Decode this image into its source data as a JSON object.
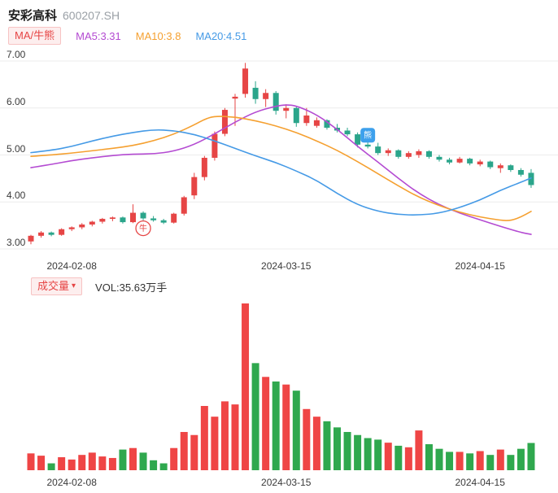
{
  "header": {
    "title": "安彩高科",
    "code": "600207.SH",
    "ma_badge": "MA/牛熊",
    "legend": [
      {
        "name": "MA5",
        "label": "MA5:3.31",
        "color": "#b44bd2"
      },
      {
        "name": "MA10",
        "label": "MA10:3.8",
        "color": "#f5a030"
      },
      {
        "name": "MA20",
        "label": "MA20:4.51",
        "color": "#459ae6"
      }
    ]
  },
  "volume_header": {
    "selector_label": "成交量",
    "caret": "▾",
    "value_label": "VOL:35.63万手",
    "latest_volume": 35.63,
    "volume_unit": "万手"
  },
  "colors": {
    "accent": "#e64545",
    "accent_bg": "#fdeeee",
    "up": "#e64545",
    "down": "#2ba58b",
    "vol_up": "#ef4545",
    "vol_down": "#2fa84e",
    "grid": "#ececec"
  },
  "chart_data": {
    "type": "candlestick+volume",
    "title": "安彩高科 600207.SH",
    "ylim": [
      3,
      7
    ],
    "y_axis_labels": [
      "7.00",
      "6.00",
      "5.00",
      "4.00",
      "3.00"
    ],
    "x_axis_labels": [
      {
        "text": "2024-02-08",
        "idx": 4
      },
      {
        "text": "2024-03-15",
        "idx": 25
      },
      {
        "text": "2024-04-15",
        "idx": 44
      }
    ],
    "candles_ohlcv": [
      [
        3.16,
        3.3,
        3.1,
        3.28,
        22
      ],
      [
        3.28,
        3.38,
        3.24,
        3.35,
        19
      ],
      [
        3.35,
        3.37,
        3.27,
        3.3,
        9
      ],
      [
        3.3,
        3.44,
        3.28,
        3.42,
        17
      ],
      [
        3.42,
        3.48,
        3.38,
        3.46,
        14
      ],
      [
        3.46,
        3.55,
        3.42,
        3.52,
        20
      ],
      [
        3.52,
        3.6,
        3.48,
        3.58,
        23
      ],
      [
        3.58,
        3.66,
        3.54,
        3.64,
        18
      ],
      [
        3.64,
        3.69,
        3.59,
        3.67,
        16
      ],
      [
        3.67,
        3.69,
        3.54,
        3.57,
        27
      ],
      [
        3.57,
        3.95,
        3.55,
        3.77,
        29
      ],
      [
        3.77,
        3.8,
        3.61,
        3.65,
        23
      ],
      [
        3.65,
        3.7,
        3.58,
        3.61,
        13
      ],
      [
        3.61,
        3.64,
        3.53,
        3.56,
        9
      ],
      [
        3.56,
        3.77,
        3.54,
        3.75,
        29
      ],
      [
        3.75,
        4.13,
        3.71,
        4.1,
        50
      ],
      [
        4.14,
        4.62,
        4.06,
        4.53,
        46
      ],
      [
        4.53,
        4.98,
        4.46,
        4.94,
        84
      ],
      [
        4.94,
        5.5,
        4.88,
        5.45,
        70
      ],
      [
        5.45,
        6.0,
        5.4,
        5.96,
        90
      ],
      [
        6.2,
        6.3,
        5.62,
        6.24,
        86
      ],
      [
        6.3,
        6.96,
        6.22,
        6.84,
        218
      ],
      [
        6.43,
        6.57,
        6.09,
        6.19,
        140
      ],
      [
        6.19,
        6.4,
        6.02,
        6.32,
        122
      ],
      [
        6.32,
        6.36,
        5.86,
        5.94,
        116
      ],
      [
        5.94,
        6.08,
        5.78,
        6.0,
        112
      ],
      [
        6.0,
        6.04,
        5.6,
        5.68,
        104
      ],
      [
        5.68,
        6.0,
        5.62,
        5.84,
        80
      ],
      [
        5.62,
        5.8,
        5.58,
        5.74,
        70
      ],
      [
        5.74,
        5.76,
        5.54,
        5.58,
        64
      ],
      [
        5.58,
        5.66,
        5.48,
        5.52,
        56
      ],
      [
        5.52,
        5.58,
        5.4,
        5.44,
        50
      ],
      [
        5.44,
        5.48,
        5.16,
        5.22,
        46
      ],
      [
        5.22,
        5.34,
        5.14,
        5.18,
        42
      ],
      [
        5.18,
        5.26,
        5.0,
        5.04,
        40
      ],
      [
        5.04,
        5.14,
        4.98,
        5.1,
        36
      ],
      [
        5.1,
        5.12,
        4.92,
        4.96,
        32
      ],
      [
        4.96,
        5.08,
        4.92,
        5.04,
        30
      ],
      [
        5.0,
        5.12,
        4.94,
        5.08,
        52
      ],
      [
        5.08,
        5.1,
        4.92,
        4.96,
        34
      ],
      [
        4.96,
        5.0,
        4.86,
        4.9,
        28
      ],
      [
        4.9,
        4.94,
        4.8,
        4.84,
        24
      ],
      [
        4.84,
        4.96,
        4.82,
        4.92,
        24
      ],
      [
        4.92,
        4.94,
        4.78,
        4.82,
        22
      ],
      [
        4.8,
        4.9,
        4.76,
        4.86,
        25
      ],
      [
        4.86,
        4.88,
        4.7,
        4.74,
        20
      ],
      [
        4.72,
        4.82,
        4.62,
        4.78,
        27
      ],
      [
        4.78,
        4.8,
        4.64,
        4.68,
        20
      ],
      [
        4.68,
        4.72,
        4.54,
        4.58,
        28
      ],
      [
        4.62,
        4.7,
        4.3,
        4.36,
        35.63
      ]
    ],
    "ma_lines": [
      {
        "name": "MA5",
        "color": "#b44bd2",
        "points": [
          [
            0,
            4.73
          ],
          [
            2,
            4.8
          ],
          [
            4,
            4.88
          ],
          [
            6,
            4.94
          ],
          [
            8,
            4.99
          ],
          [
            10,
            5.02
          ],
          [
            12,
            5.02
          ],
          [
            14,
            5.08
          ],
          [
            16,
            5.22
          ],
          [
            18,
            5.45
          ],
          [
            20,
            5.7
          ],
          [
            22,
            5.92
          ],
          [
            24,
            6.04
          ],
          [
            25,
            6.07
          ],
          [
            26,
            6.05
          ],
          [
            28,
            5.86
          ],
          [
            30,
            5.55
          ],
          [
            32,
            5.18
          ],
          [
            34,
            4.85
          ],
          [
            36,
            4.5
          ],
          [
            38,
            4.18
          ],
          [
            40,
            3.94
          ],
          [
            42,
            3.76
          ],
          [
            44,
            3.62
          ],
          [
            46,
            3.48
          ],
          [
            48,
            3.35
          ],
          [
            49,
            3.31
          ]
        ]
      },
      {
        "name": "MA10",
        "color": "#f5a030",
        "points": [
          [
            0,
            4.97
          ],
          [
            2,
            5.0
          ],
          [
            4,
            5.04
          ],
          [
            6,
            5.09
          ],
          [
            8,
            5.14
          ],
          [
            10,
            5.2
          ],
          [
            12,
            5.3
          ],
          [
            14,
            5.44
          ],
          [
            16,
            5.64
          ],
          [
            17,
            5.76
          ],
          [
            18,
            5.83
          ],
          [
            20,
            5.81
          ],
          [
            22,
            5.73
          ],
          [
            24,
            5.62
          ],
          [
            26,
            5.48
          ],
          [
            28,
            5.3
          ],
          [
            30,
            5.1
          ],
          [
            32,
            4.86
          ],
          [
            34,
            4.6
          ],
          [
            36,
            4.34
          ],
          [
            38,
            4.1
          ],
          [
            40,
            3.92
          ],
          [
            42,
            3.78
          ],
          [
            44,
            3.68
          ],
          [
            46,
            3.61
          ],
          [
            47,
            3.6
          ],
          [
            48,
            3.68
          ],
          [
            49,
            3.8
          ]
        ]
      },
      {
        "name": "MA20",
        "color": "#459ae6",
        "points": [
          [
            0,
            5.05
          ],
          [
            2,
            5.1
          ],
          [
            4,
            5.18
          ],
          [
            6,
            5.3
          ],
          [
            8,
            5.4
          ],
          [
            10,
            5.48
          ],
          [
            12,
            5.54
          ],
          [
            14,
            5.52
          ],
          [
            16,
            5.44
          ],
          [
            18,
            5.3
          ],
          [
            20,
            5.14
          ],
          [
            22,
            4.98
          ],
          [
            24,
            4.84
          ],
          [
            26,
            4.66
          ],
          [
            28,
            4.46
          ],
          [
            30,
            4.18
          ],
          [
            32,
            3.94
          ],
          [
            34,
            3.8
          ],
          [
            36,
            3.73
          ],
          [
            38,
            3.72
          ],
          [
            40,
            3.76
          ],
          [
            42,
            3.88
          ],
          [
            44,
            4.04
          ],
          [
            46,
            4.25
          ],
          [
            48,
            4.42
          ],
          [
            49,
            4.51
          ]
        ]
      }
    ],
    "markers": [
      {
        "type": "bull",
        "idx": 11,
        "price": 3.44,
        "label": "牛",
        "color": "#e64545"
      },
      {
        "type": "bear",
        "idx": 33,
        "price": 5.42,
        "label": "熊",
        "color": "#3da0ec"
      }
    ]
  }
}
